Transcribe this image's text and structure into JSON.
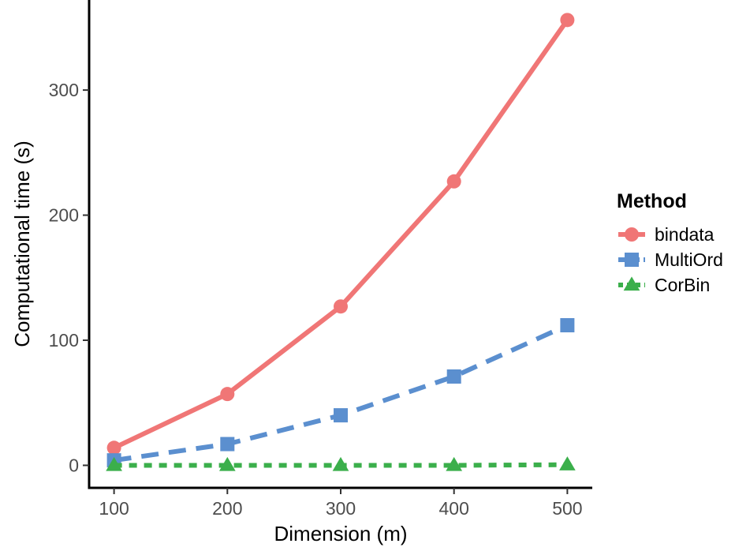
{
  "chart_data": {
    "type": "line",
    "xlabel": "Dimension (m)",
    "ylabel": "Computational time (s)",
    "x": [
      100,
      200,
      300,
      400,
      500
    ],
    "xticks": [
      100,
      200,
      300,
      400,
      500
    ],
    "yticks": [
      0,
      100,
      200,
      300
    ],
    "xlim": [
      78,
      522
    ],
    "ylim": [
      -18,
      372
    ],
    "grid": false,
    "legend": {
      "title": "Method",
      "position": "right"
    },
    "series": [
      {
        "name": "bindata",
        "values": [
          14,
          57,
          127,
          227,
          356
        ],
        "color": "#F07676",
        "marker": "circle",
        "line": "solid"
      },
      {
        "name": "MultiOrd",
        "values": [
          4,
          17,
          40,
          71,
          112
        ],
        "color": "#5B8FCF",
        "marker": "square",
        "line": "dashed"
      },
      {
        "name": "CorBin",
        "values": [
          0,
          0,
          0,
          0,
          0.5
        ],
        "color": "#3BAF4B",
        "marker": "triangle",
        "line": "dotted"
      }
    ]
  }
}
